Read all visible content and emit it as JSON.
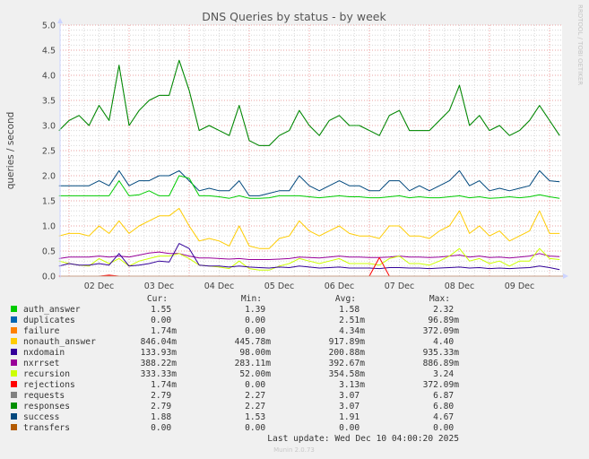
{
  "chart_data": {
    "type": "line",
    "title": "DNS Queries by status - by week",
    "ylabel": "queries / second",
    "ylim": [
      0,
      5
    ],
    "yticks": [
      "0.0",
      "0.5",
      "1.0",
      "1.5",
      "2.0",
      "2.5",
      "3.0",
      "3.5",
      "4.0",
      "4.5",
      "5.0"
    ],
    "xticks": [
      "02 Dec",
      "03 Dec",
      "04 Dec",
      "05 Dec",
      "06 Dec",
      "07 Dec",
      "08 Dec",
      "09 Dec"
    ],
    "grid": true,
    "x": [
      "Dec 01 20:00",
      "Dec 02 00:00",
      "Dec 02 04:00",
      "Dec 02 08:00",
      "Dec 02 12:00",
      "Dec 02 16:00",
      "Dec 02 20:00",
      "Dec 03 00:00",
      "Dec 03 04:00",
      "Dec 03 08:00",
      "Dec 03 12:00",
      "Dec 03 16:00",
      "Dec 03 20:00",
      "Dec 04 00:00",
      "Dec 04 04:00",
      "Dec 04 08:00",
      "Dec 04 12:00",
      "Dec 04 16:00",
      "Dec 04 20:00",
      "Dec 05 00:00",
      "Dec 05 04:00",
      "Dec 05 08:00",
      "Dec 05 12:00",
      "Dec 05 16:00",
      "Dec 05 20:00",
      "Dec 06 00:00",
      "Dec 06 04:00",
      "Dec 06 08:00",
      "Dec 06 12:00",
      "Dec 06 16:00",
      "Dec 06 20:00",
      "Dec 07 00:00",
      "Dec 07 04:00",
      "Dec 07 08:00",
      "Dec 07 12:00",
      "Dec 07 16:00",
      "Dec 07 20:00",
      "Dec 08 00:00",
      "Dec 08 04:00",
      "Dec 08 08:00",
      "Dec 08 12:00",
      "Dec 08 16:00",
      "Dec 08 20:00",
      "Dec 09 00:00",
      "Dec 09 04:00",
      "Dec 09 08:00",
      "Dec 09 12:00",
      "Dec 09 16:00",
      "Dec 09 20:00",
      "Dec 10 00:00",
      "Dec 10 04:00"
    ],
    "series": [
      {
        "name": "requests",
        "color": "#808080",
        "values": [
          2.9,
          3.1,
          3.2,
          3.0,
          3.4,
          3.1,
          4.2,
          3.0,
          3.3,
          3.5,
          3.6,
          3.6,
          4.3,
          3.7,
          2.9,
          3.0,
          2.9,
          2.8,
          3.4,
          2.7,
          2.6,
          2.6,
          2.8,
          2.9,
          3.3,
          3.0,
          2.8,
          3.1,
          3.2,
          3.0,
          3.0,
          2.9,
          2.8,
          3.2,
          3.3,
          2.9,
          2.9,
          2.9,
          3.1,
          3.3,
          3.8,
          3.0,
          3.2,
          2.9,
          3.0,
          2.8,
          2.9,
          3.1,
          3.4,
          3.1,
          2.8
        ]
      },
      {
        "name": "responses",
        "color": "#008f00",
        "values": [
          2.9,
          3.1,
          3.2,
          3.0,
          3.4,
          3.1,
          4.2,
          3.0,
          3.3,
          3.5,
          3.6,
          3.6,
          4.3,
          3.7,
          2.9,
          3.0,
          2.9,
          2.8,
          3.4,
          2.7,
          2.6,
          2.6,
          2.8,
          2.9,
          3.3,
          3.0,
          2.8,
          3.1,
          3.2,
          3.0,
          3.0,
          2.9,
          2.8,
          3.2,
          3.3,
          2.9,
          2.9,
          2.9,
          3.1,
          3.3,
          3.8,
          3.0,
          3.2,
          2.9,
          3.0,
          2.8,
          2.9,
          3.1,
          3.4,
          3.1,
          2.8
        ]
      },
      {
        "name": "success",
        "color": "#00487d",
        "values": [
          1.8,
          1.8,
          1.8,
          1.8,
          1.9,
          1.8,
          2.1,
          1.8,
          1.9,
          1.9,
          2.0,
          2.0,
          2.1,
          1.9,
          1.7,
          1.75,
          1.7,
          1.7,
          1.9,
          1.6,
          1.6,
          1.65,
          1.7,
          1.7,
          2.0,
          1.8,
          1.7,
          1.8,
          1.9,
          1.8,
          1.8,
          1.7,
          1.7,
          1.9,
          1.9,
          1.7,
          1.8,
          1.7,
          1.8,
          1.9,
          2.1,
          1.8,
          1.9,
          1.7,
          1.75,
          1.7,
          1.75,
          1.8,
          2.1,
          1.9,
          1.88
        ]
      },
      {
        "name": "auth_answer",
        "color": "#00cc00",
        "values": [
          1.6,
          1.6,
          1.6,
          1.6,
          1.6,
          1.6,
          1.9,
          1.6,
          1.62,
          1.7,
          1.6,
          1.6,
          2.0,
          1.95,
          1.6,
          1.6,
          1.58,
          1.55,
          1.6,
          1.55,
          1.55,
          1.56,
          1.6,
          1.6,
          1.6,
          1.58,
          1.56,
          1.58,
          1.6,
          1.58,
          1.58,
          1.56,
          1.56,
          1.58,
          1.6,
          1.56,
          1.58,
          1.56,
          1.56,
          1.58,
          1.6,
          1.56,
          1.58,
          1.55,
          1.56,
          1.58,
          1.56,
          1.58,
          1.62,
          1.58,
          1.55
        ]
      },
      {
        "name": "nonauth_answer",
        "color": "#ffcc00",
        "values": [
          0.8,
          0.85,
          0.85,
          0.8,
          1.0,
          0.85,
          1.1,
          0.85,
          1.0,
          1.1,
          1.2,
          1.2,
          1.35,
          1.0,
          0.7,
          0.75,
          0.7,
          0.6,
          1.0,
          0.6,
          0.55,
          0.55,
          0.75,
          0.8,
          1.1,
          0.9,
          0.8,
          0.9,
          1.0,
          0.85,
          0.8,
          0.8,
          0.75,
          1.0,
          1.0,
          0.8,
          0.8,
          0.75,
          0.9,
          1.0,
          1.3,
          0.85,
          1.0,
          0.8,
          0.9,
          0.7,
          0.8,
          0.9,
          1.3,
          0.85,
          0.85
        ]
      },
      {
        "name": "nxrrset",
        "color": "#990099",
        "values": [
          0.35,
          0.38,
          0.38,
          0.38,
          0.4,
          0.38,
          0.4,
          0.38,
          0.42,
          0.46,
          0.48,
          0.45,
          0.45,
          0.4,
          0.36,
          0.36,
          0.35,
          0.34,
          0.35,
          0.33,
          0.33,
          0.33,
          0.34,
          0.35,
          0.38,
          0.37,
          0.36,
          0.38,
          0.4,
          0.38,
          0.38,
          0.37,
          0.37,
          0.38,
          0.4,
          0.38,
          0.38,
          0.37,
          0.38,
          0.4,
          0.42,
          0.38,
          0.4,
          0.37,
          0.38,
          0.36,
          0.38,
          0.4,
          0.45,
          0.4,
          0.39
        ]
      },
      {
        "name": "recursion",
        "color": "#ccff00",
        "values": [
          0.3,
          0.25,
          0.22,
          0.2,
          0.35,
          0.25,
          0.35,
          0.2,
          0.3,
          0.35,
          0.4,
          0.4,
          0.45,
          0.35,
          0.22,
          0.2,
          0.18,
          0.15,
          0.3,
          0.15,
          0.12,
          0.12,
          0.2,
          0.25,
          0.35,
          0.3,
          0.25,
          0.3,
          0.35,
          0.25,
          0.25,
          0.25,
          0.22,
          0.35,
          0.4,
          0.25,
          0.25,
          0.22,
          0.3,
          0.4,
          0.55,
          0.3,
          0.35,
          0.25,
          0.3,
          0.2,
          0.3,
          0.3,
          0.55,
          0.35,
          0.33
        ]
      },
      {
        "name": "nxdomain",
        "color": "#330099",
        "values": [
          0.2,
          0.25,
          0.22,
          0.22,
          0.25,
          0.22,
          0.45,
          0.2,
          0.22,
          0.25,
          0.3,
          0.28,
          0.65,
          0.55,
          0.22,
          0.2,
          0.2,
          0.18,
          0.2,
          0.18,
          0.17,
          0.16,
          0.18,
          0.17,
          0.2,
          0.18,
          0.16,
          0.17,
          0.18,
          0.16,
          0.16,
          0.16,
          0.15,
          0.17,
          0.17,
          0.16,
          0.16,
          0.15,
          0.16,
          0.17,
          0.18,
          0.16,
          0.17,
          0.15,
          0.16,
          0.15,
          0.16,
          0.17,
          0.2,
          0.17,
          0.13
        ]
      },
      {
        "name": "rejections",
        "color": "#ff0000",
        "values": [
          0,
          0,
          0,
          0,
          0,
          0.02,
          0,
          0,
          0,
          0,
          0,
          0,
          0,
          0,
          0,
          0,
          0,
          0,
          0,
          0,
          0,
          0,
          0,
          0,
          0,
          0,
          0,
          0,
          0,
          0,
          0,
          0,
          0.37,
          0,
          0,
          0,
          0,
          0,
          0,
          0,
          0,
          0,
          0,
          0,
          0,
          0,
          0,
          0,
          0,
          0,
          0
        ]
      }
    ]
  },
  "legend": {
    "headers": {
      "cur": "Cur:",
      "min": "Min:",
      "avg": "Avg:",
      "max": "Max:"
    },
    "rows": [
      {
        "name": "auth_answer",
        "color": "#00cc00",
        "cur": "1.55",
        "min": "1.39",
        "avg": "1.58",
        "max": "2.32"
      },
      {
        "name": "duplicates",
        "color": "#0066b3",
        "cur": "0.00",
        "min": "0.00",
        "avg": "2.51m",
        "max": "96.89m"
      },
      {
        "name": "failure",
        "color": "#ff8000",
        "cur": "1.74m",
        "min": "0.00",
        "avg": "4.34m",
        "max": "372.09m"
      },
      {
        "name": "nonauth_answer",
        "color": "#ffcc00",
        "cur": "846.04m",
        "min": "445.78m",
        "avg": "917.89m",
        "max": "4.40"
      },
      {
        "name": "nxdomain",
        "color": "#330099",
        "cur": "133.93m",
        "min": "98.00m",
        "avg": "200.88m",
        "max": "935.33m"
      },
      {
        "name": "nxrrset",
        "color": "#990099",
        "cur": "388.22m",
        "min": "283.11m",
        "avg": "392.67m",
        "max": "886.89m"
      },
      {
        "name": "recursion",
        "color": "#ccff00",
        "cur": "333.33m",
        "min": "52.00m",
        "avg": "354.58m",
        "max": "3.24"
      },
      {
        "name": "rejections",
        "color": "#ff0000",
        "cur": "1.74m",
        "min": "0.00",
        "avg": "3.13m",
        "max": "372.09m"
      },
      {
        "name": "requests",
        "color": "#808080",
        "cur": "2.79",
        "min": "2.27",
        "avg": "3.07",
        "max": "6.87"
      },
      {
        "name": "responses",
        "color": "#008f00",
        "cur": "2.79",
        "min": "2.27",
        "avg": "3.07",
        "max": "6.80"
      },
      {
        "name": "success",
        "color": "#00487d",
        "cur": "1.88",
        "min": "1.53",
        "avg": "1.91",
        "max": "4.67"
      },
      {
        "name": "transfers",
        "color": "#b35a00",
        "cur": "0.00",
        "min": "0.00",
        "avg": "0.00",
        "max": "0.00"
      }
    ]
  },
  "last_update": "Last update: Wed Dec 10 04:00:20 2025",
  "footer": "Munin 2.0.73",
  "watermark": "RRDTOOL / TOBI OETIKER"
}
